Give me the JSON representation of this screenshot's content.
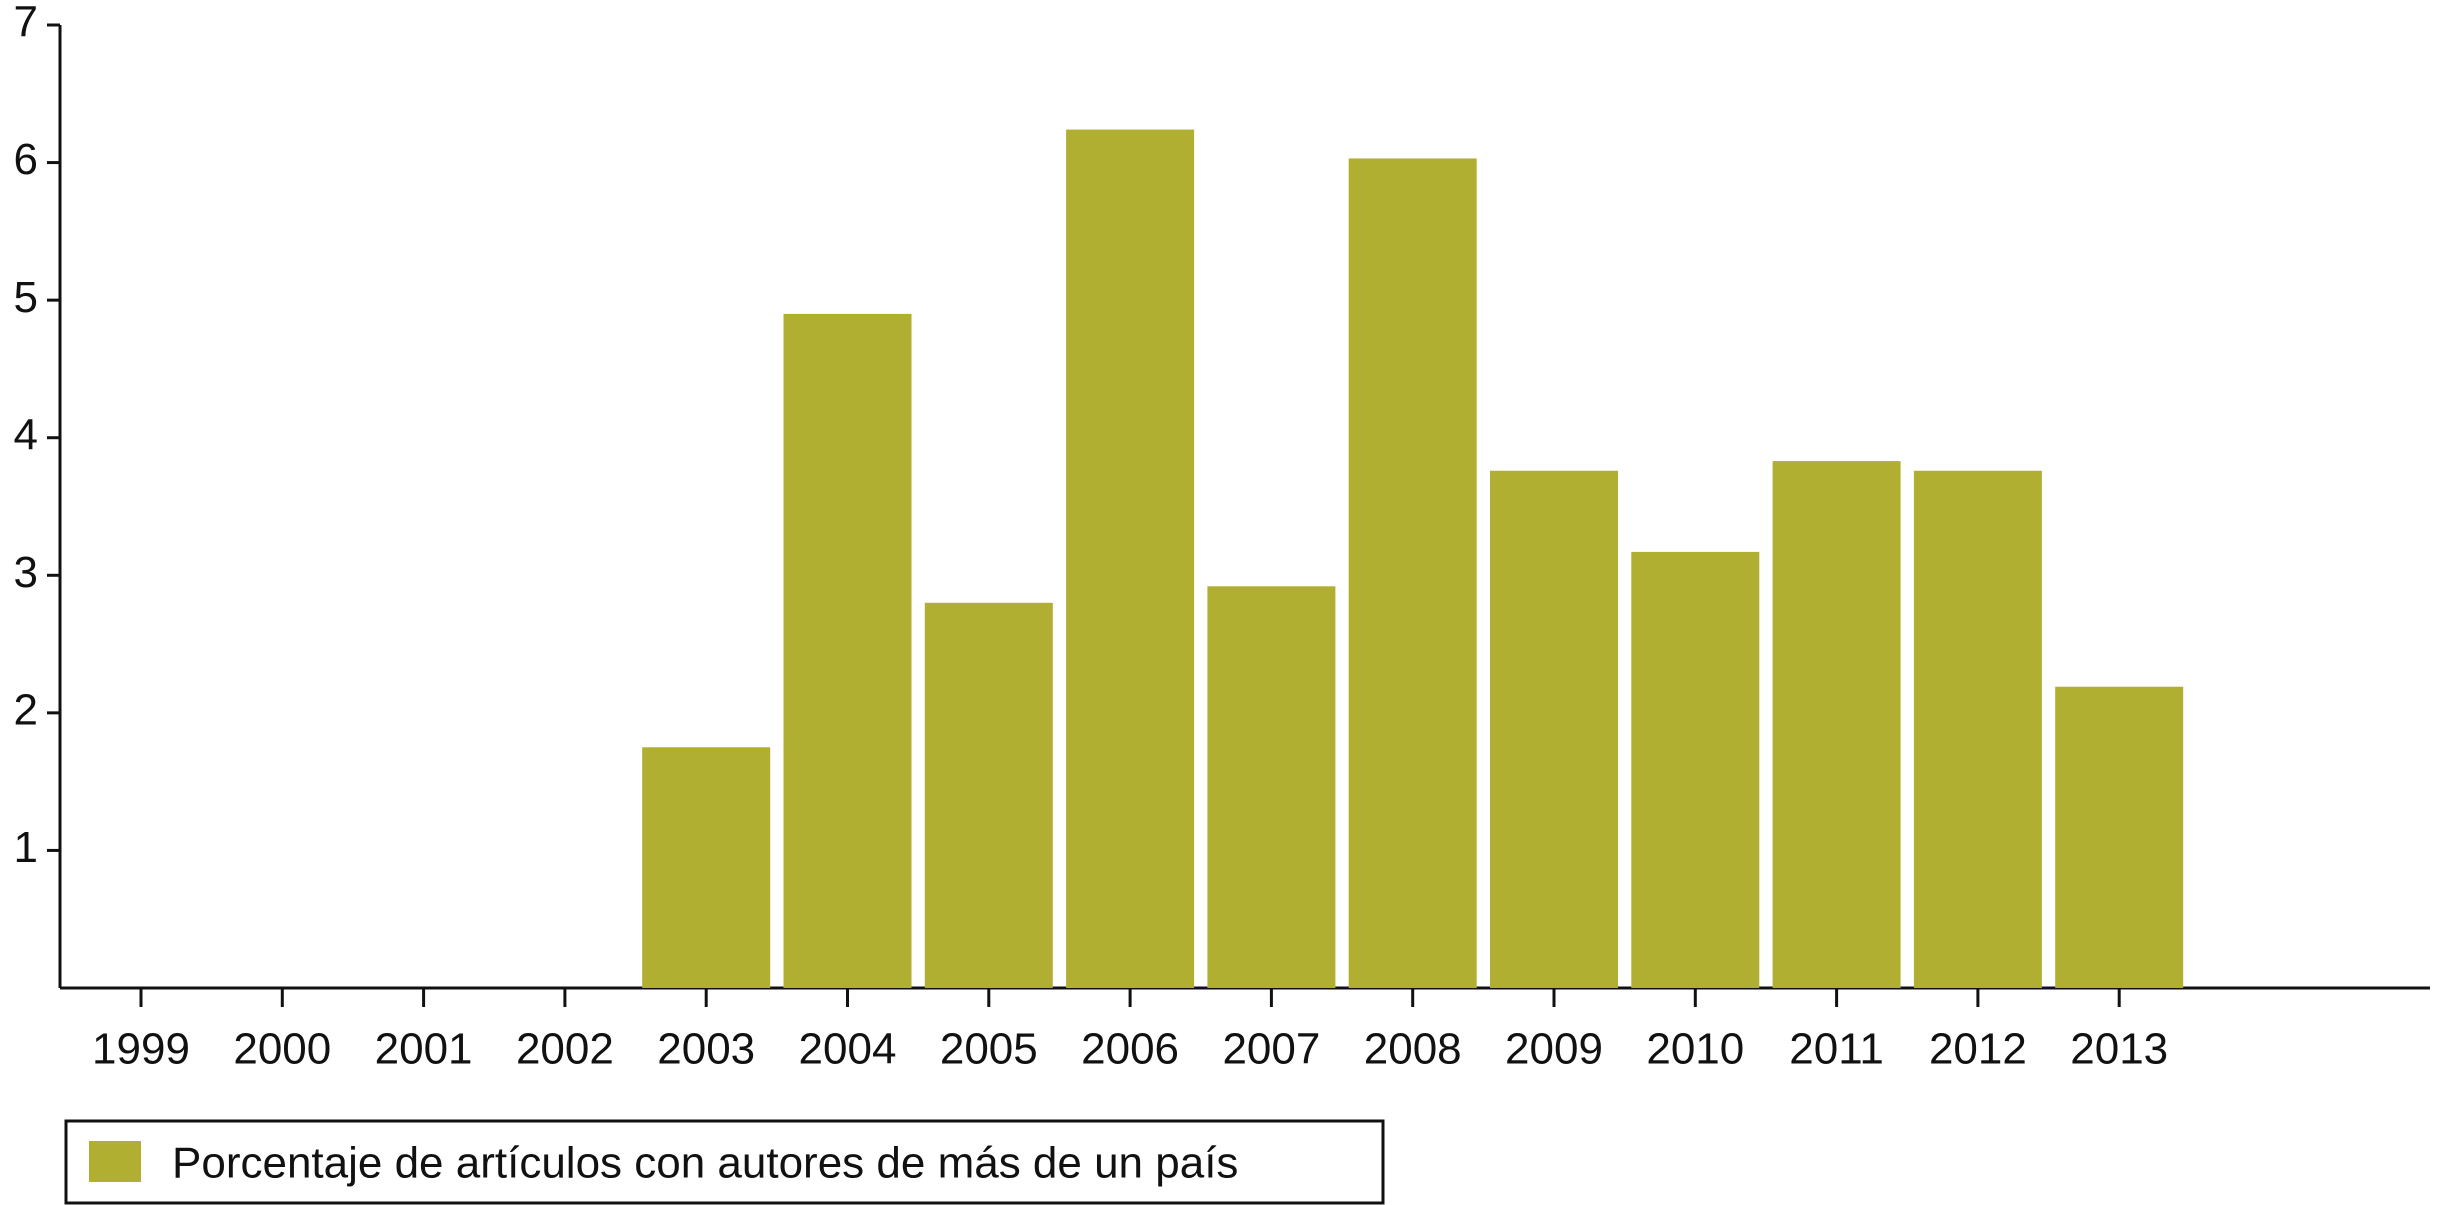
{
  "chart_data": {
    "type": "bar",
    "categories": [
      "1999",
      "2000",
      "2001",
      "2002",
      "2003",
      "2004",
      "2005",
      "2006",
      "2007",
      "2008",
      "2009",
      "2010",
      "2011",
      "2012",
      "2013"
    ],
    "series": [
      {
        "name": "Porcentaje de artículos con autores de más de un país",
        "color": "#b1af31",
        "values": [
          0,
          0,
          0,
          0,
          1.75,
          4.9,
          2.8,
          6.24,
          2.92,
          6.03,
          3.76,
          3.17,
          3.83,
          3.76,
          2.19
        ]
      }
    ],
    "ylim": [
      0,
      7
    ],
    "yticks": [
      1,
      2,
      3,
      4,
      5,
      6,
      7
    ],
    "grid": false,
    "legend": "bottom-left"
  }
}
